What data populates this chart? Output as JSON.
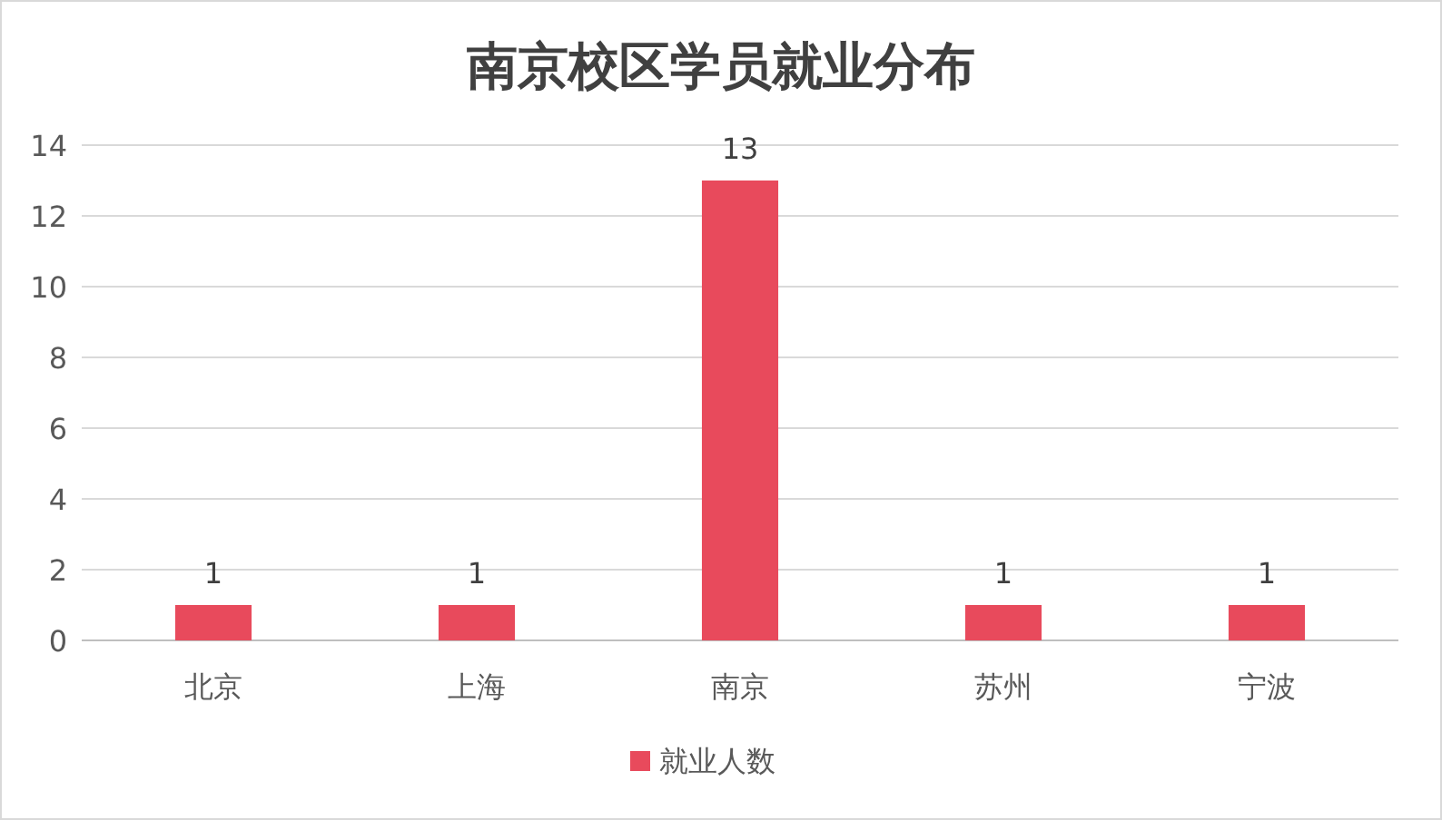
{
  "chart_data": {
    "type": "bar",
    "title": "南京校区学员就业分布",
    "categories": [
      "北京",
      "上海",
      "南京",
      "苏州",
      "宁波"
    ],
    "series": [
      {
        "name": "就业人数",
        "color": "#e84a5c",
        "values": [
          1,
          1,
          13,
          1,
          1
        ]
      }
    ],
    "ylim": [
      0,
      14
    ],
    "yticks": [
      0,
      2,
      4,
      6,
      8,
      10,
      12,
      14
    ],
    "grid": "y",
    "data_labels": true,
    "legend": "bottom"
  }
}
